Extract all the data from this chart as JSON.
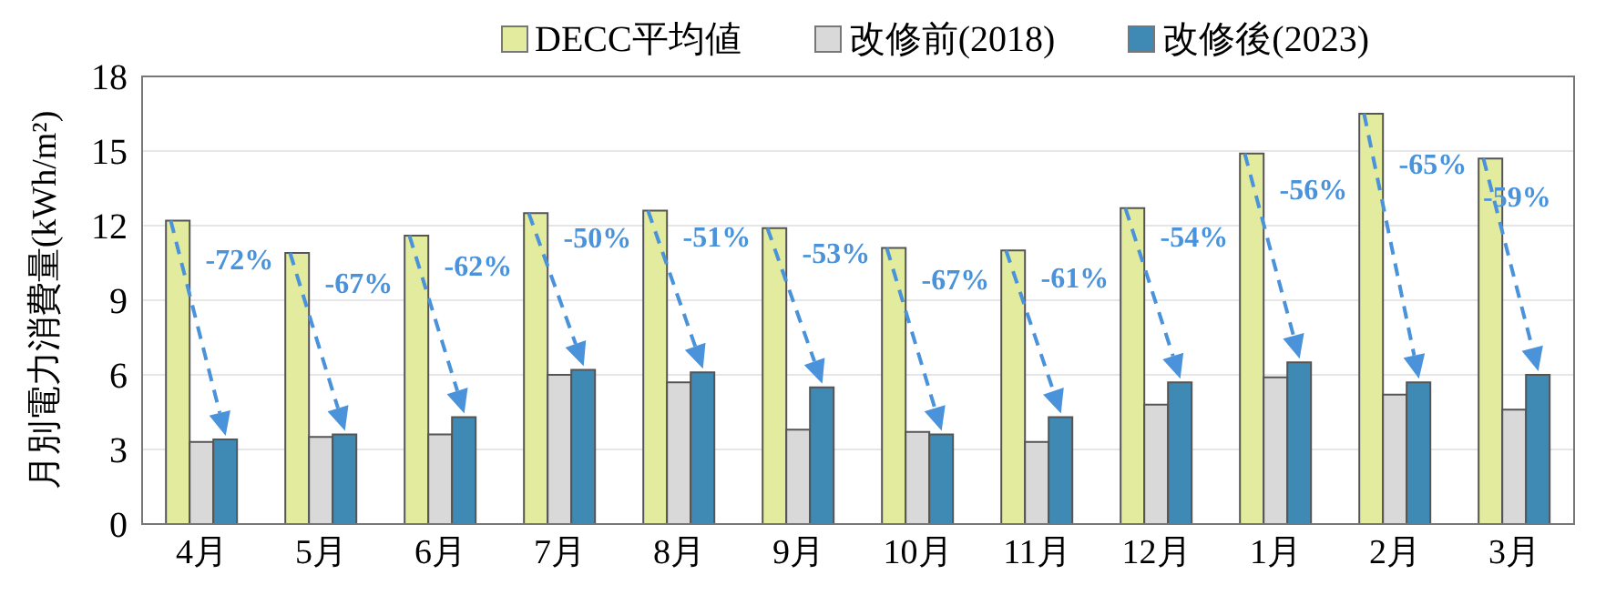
{
  "chart_data": {
    "type": "bar",
    "ylabel": "月別電力消費量(kWh/m²)",
    "categories": [
      "4月",
      "5月",
      "6月",
      "7月",
      "8月",
      "9月",
      "10月",
      "11月",
      "12月",
      "1月",
      "2月",
      "3月"
    ],
    "series": [
      {
        "name": "DECC平均値",
        "color": "#e3eb9f",
        "values": [
          12.2,
          10.9,
          11.6,
          12.5,
          12.6,
          11.9,
          11.1,
          11.0,
          12.7,
          14.9,
          16.5,
          14.7
        ]
      },
      {
        "name": "改修前(2018)",
        "color": "#d9d9d9",
        "values": [
          3.3,
          3.5,
          3.6,
          6.0,
          5.7,
          3.8,
          3.7,
          3.3,
          4.8,
          5.9,
          5.2,
          4.6
        ]
      },
      {
        "name": "改修後(2023)",
        "color": "#3f8ab4",
        "values": [
          3.4,
          3.6,
          4.3,
          6.2,
          6.1,
          5.5,
          3.6,
          4.3,
          5.7,
          6.5,
          5.7,
          6.0
        ]
      }
    ],
    "annotations": [
      "-72%",
      "-67%",
      "-62%",
      "-50%",
      "-51%",
      "-53%",
      "-67%",
      "-61%",
      "-54%",
      "-56%",
      "-65%",
      "-59%"
    ],
    "ylim": [
      0,
      18
    ],
    "yticks": [
      0,
      3,
      6,
      9,
      12,
      15,
      18
    ],
    "grid": "y",
    "legend": "top"
  }
}
